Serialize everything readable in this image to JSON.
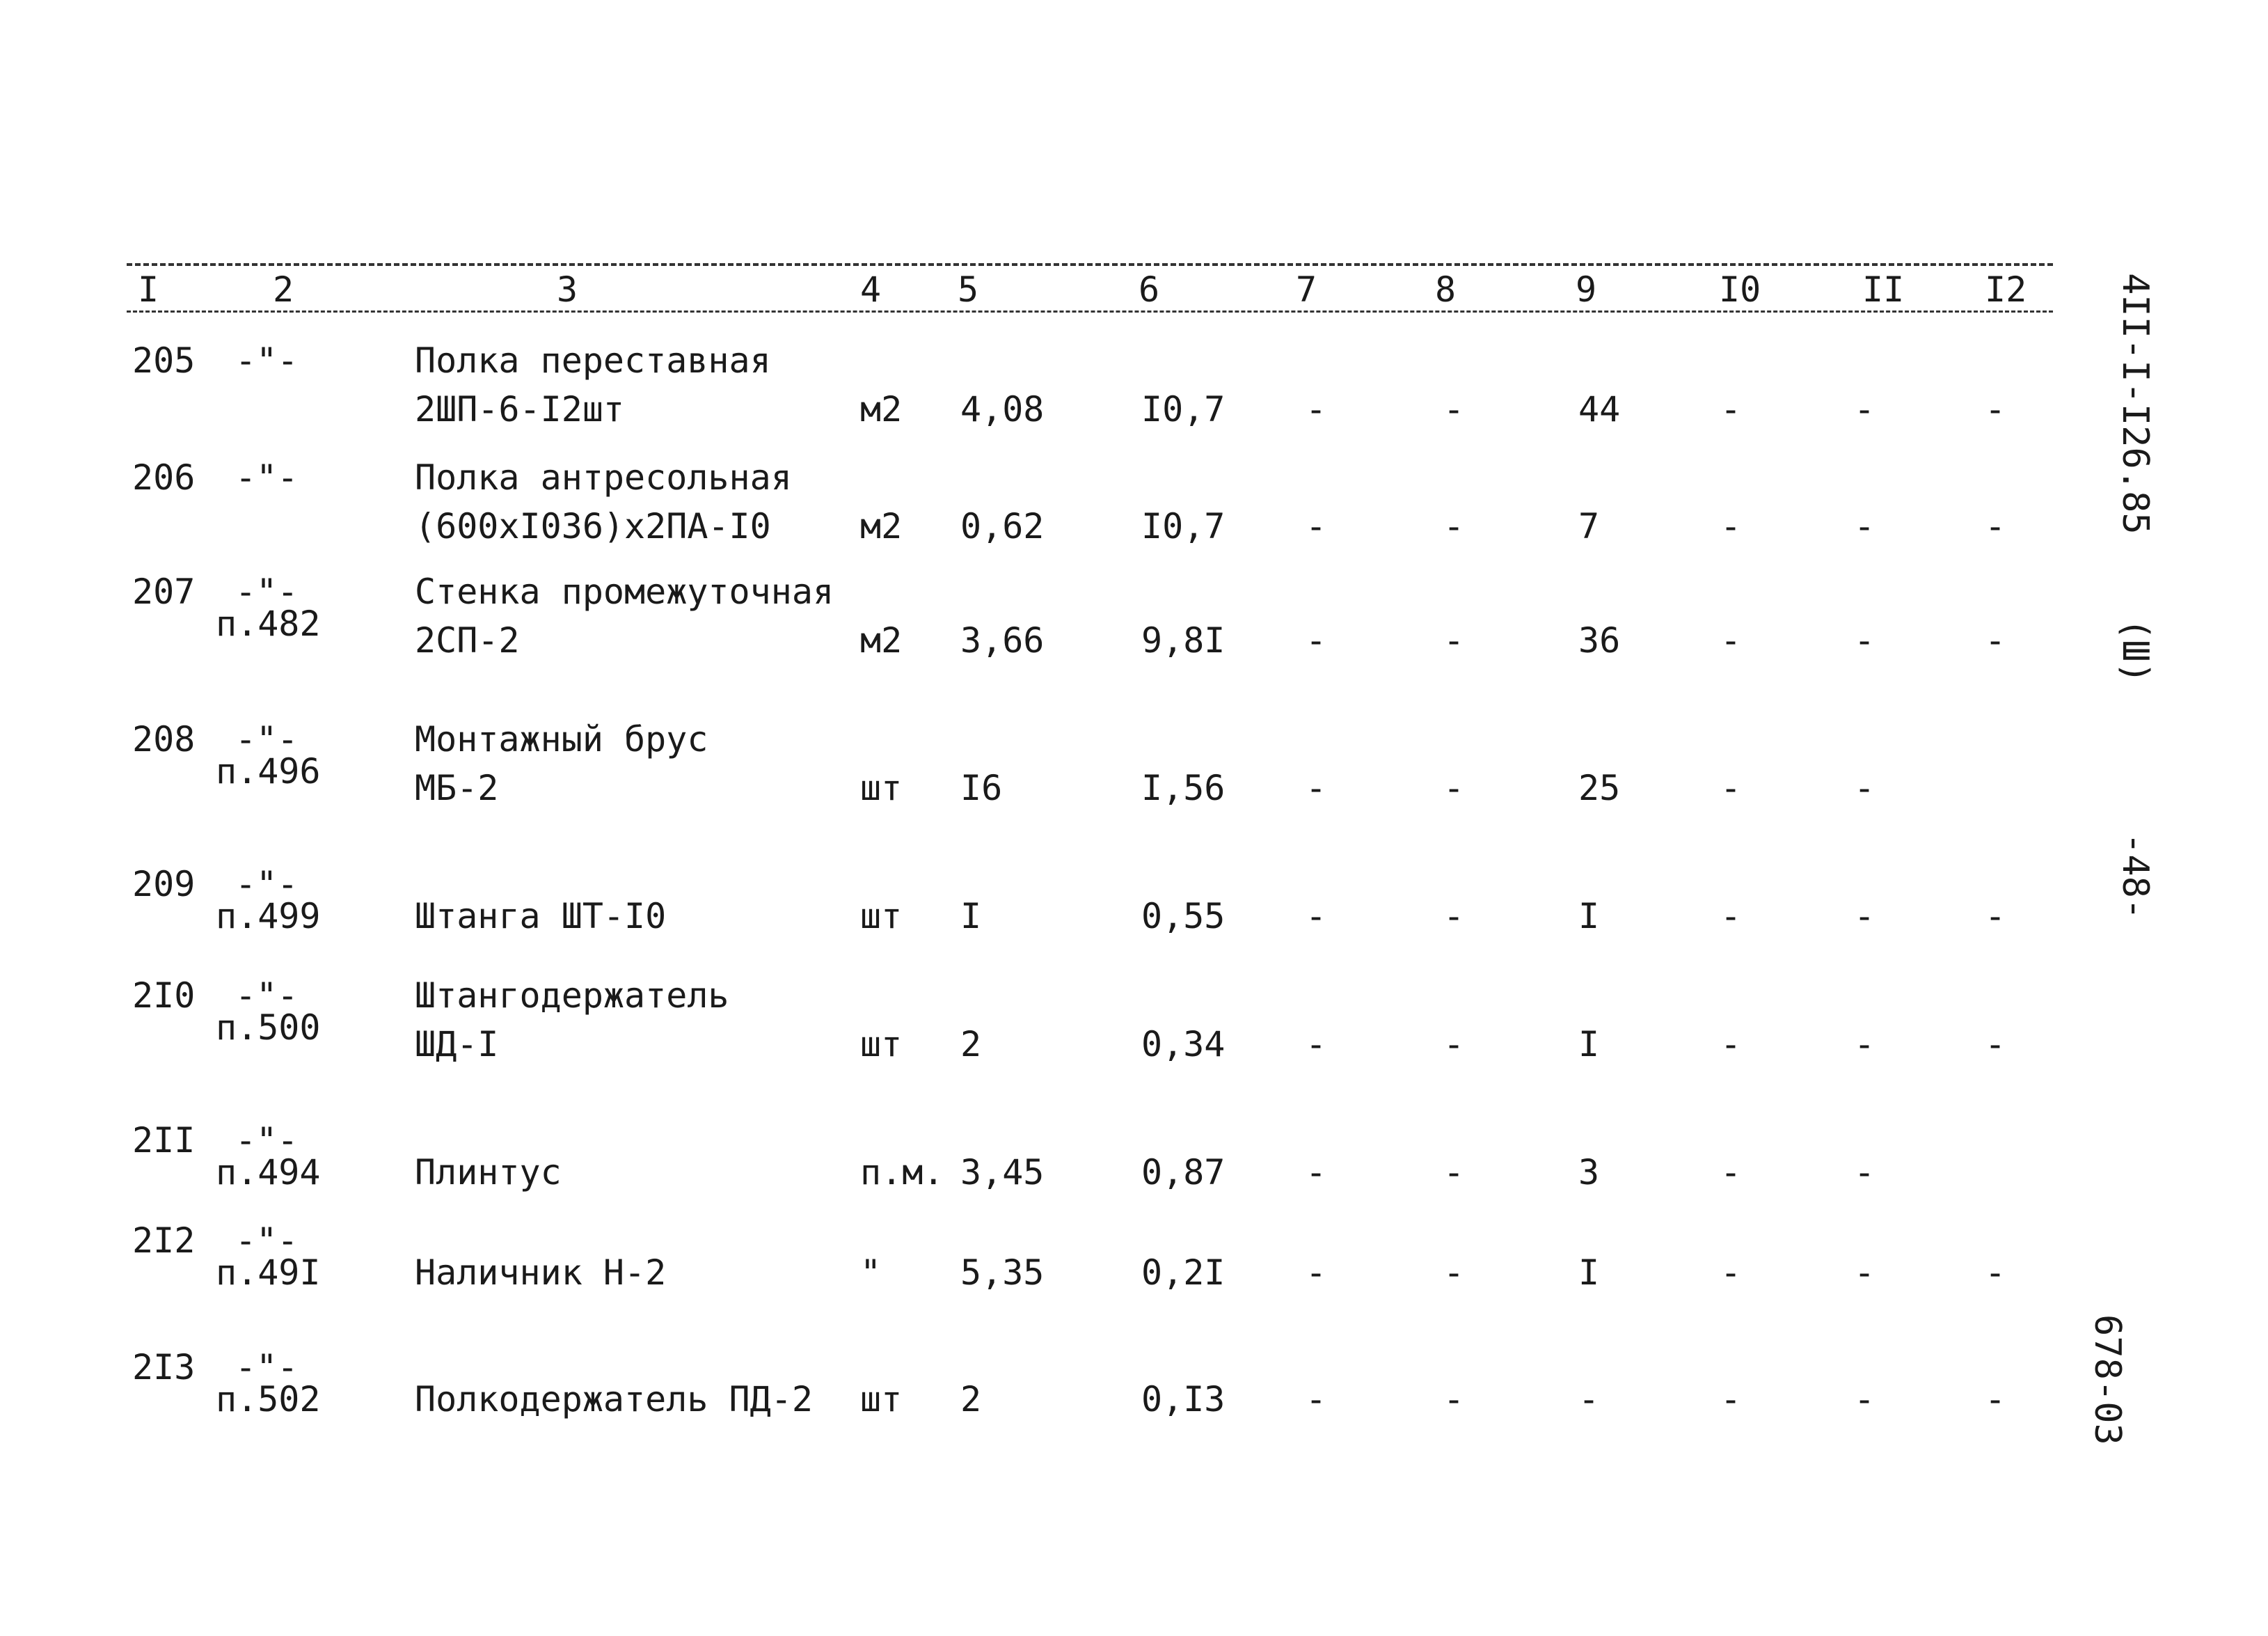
{
  "header": [
    "I",
    "2",
    "3",
    "4",
    "5",
    "6",
    "7",
    "8",
    "9",
    "I0",
    "II",
    "I2"
  ],
  "rows": [
    {
      "num": "205",
      "ref": "-\"-",
      "ref2": "",
      "name": "Полка переставная",
      "name2": "2ШП-6-I2шт",
      "unit": "м2",
      "c5": "4,08",
      "c6": "I0,7",
      "c7": "-",
      "c8": "-",
      "c9": "44",
      "c10": "-",
      "c11": "-",
      "c12": "-"
    },
    {
      "num": "206",
      "ref": "-\"-",
      "ref2": "",
      "name": "Полка антресольная",
      "name2": "(600xI036)x2ПА-I0",
      "unit": "м2",
      "c5": "0,62",
      "c6": "I0,7",
      "c7": "-",
      "c8": "-",
      "c9": "7",
      "c10": "-",
      "c11": "-",
      "c12": "-"
    },
    {
      "num": "207",
      "ref": "-\"-",
      "ref2": "п.482",
      "name": "Стенка промежуточная",
      "name2": "2СП-2",
      "unit": "м2",
      "c5": "3,66",
      "c6": "9,8I",
      "c7": "-",
      "c8": "-",
      "c9": "36",
      "c10": "-",
      "c11": "-",
      "c12": "-"
    },
    {
      "num": "208",
      "ref": "-\"-",
      "ref2": "п.496",
      "name": "Монтажный брус",
      "name2": "МБ-2",
      "unit": "шт",
      "c5": "I6",
      "c6": "I,56",
      "c7": "-",
      "c8": "-",
      "c9": "25",
      "c10": "-",
      "c11": "-",
      "c12": ""
    },
    {
      "num": "209",
      "ref": "-\"-",
      "ref2": "п.499",
      "name": "",
      "name2": "Штанга ШТ-I0",
      "unit": "шт",
      "c5": "I",
      "c6": "0,55",
      "c7": "-",
      "c8": "-",
      "c9": "I",
      "c10": "-",
      "c11": "-",
      "c12": "-"
    },
    {
      "num": "2I0",
      "ref": "-\"-",
      "ref2": "п.500",
      "name": "Штангодержатель",
      "name2": "ШД-I",
      "unit": "шт",
      "c5": "2",
      "c6": "0,34",
      "c7": "-",
      "c8": "-",
      "c9": "I",
      "c10": "-",
      "c11": "-",
      "c12": "-"
    },
    {
      "num": "2II",
      "ref": "-\"-",
      "ref2": "п.494",
      "name": "",
      "name2": "Плинтус",
      "unit": "п.м.",
      "c5": "3,45",
      "c6": "0,87",
      "c7": "-",
      "c8": "-",
      "c9": "3",
      "c10": "-",
      "c11": "-",
      "c12": ""
    },
    {
      "num": "2I2",
      "ref": "-\"-",
      "ref2": "п.49I",
      "name": "",
      "name2": "Наличник Н-2",
      "unit": "\"",
      "c5": "5,35",
      "c6": "0,2I",
      "c7": "-",
      "c8": "-",
      "c9": "I",
      "c10": "-",
      "c11": "-",
      "c12": "-"
    },
    {
      "num": "2I3",
      "ref": "-\"-",
      "ref2": "п.502",
      "name": "",
      "name2": "Полкодержатель ПД-2",
      "unit": "шт",
      "c5": "2",
      "c6": "0,I3",
      "c7": "-",
      "c8": "-",
      "c9": "-",
      "c10": "-",
      "c11": "-",
      "c12": "-"
    }
  ],
  "side": {
    "code": "4II-I-I26.85",
    "series": "(Ш)",
    "page": "-48-",
    "album": "678-03"
  }
}
